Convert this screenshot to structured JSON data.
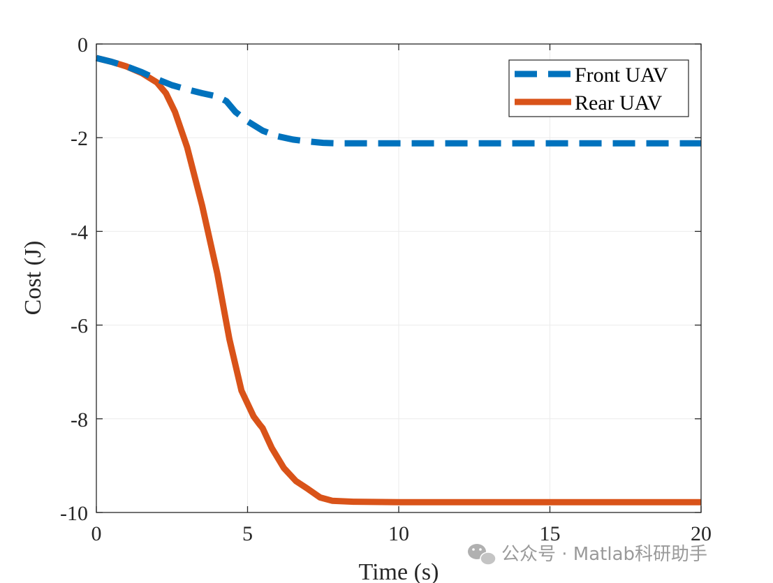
{
  "chart_data": {
    "type": "line",
    "xlabel": "Time (s)",
    "ylabel": "Cost (J)",
    "xlim": [
      0,
      20
    ],
    "ylim": [
      -10,
      0
    ],
    "xticks": [
      0,
      5,
      10,
      15,
      20
    ],
    "yticks": [
      0,
      -2,
      -4,
      -6,
      -8,
      -10
    ],
    "xtick_labels": [
      "0",
      "5",
      "10",
      "15",
      "20"
    ],
    "ytick_labels": [
      "0",
      "-2",
      "-4",
      "-6",
      "-8",
      "-10"
    ],
    "grid": true,
    "legend_position": "top-right",
    "series": [
      {
        "name": "Front UAV",
        "color": "#0072BD",
        "line_style": "dashed",
        "x": [
          0,
          0.5,
          1.0,
          1.5,
          2.0,
          2.5,
          3.0,
          3.5,
          4.0,
          4.3,
          4.6,
          5.0,
          5.5,
          6.0,
          6.5,
          7.0,
          7.5,
          8.0,
          10,
          12,
          15,
          18,
          20
        ],
        "y": [
          -0.3,
          -0.38,
          -0.48,
          -0.6,
          -0.75,
          -0.88,
          -0.97,
          -1.05,
          -1.12,
          -1.22,
          -1.45,
          -1.65,
          -1.85,
          -1.97,
          -2.04,
          -2.08,
          -2.11,
          -2.12,
          -2.12,
          -2.12,
          -2.12,
          -2.12,
          -2.12
        ]
      },
      {
        "name": "Rear UAV",
        "color": "#D95319",
        "line_style": "solid",
        "x": [
          0,
          0.5,
          1.0,
          1.5,
          2.0,
          2.3,
          2.6,
          3.0,
          3.5,
          4.0,
          4.4,
          4.8,
          5.2,
          5.4,
          5.5,
          5.8,
          6.2,
          6.6,
          7.0,
          7.4,
          7.8,
          8.5,
          10,
          12,
          15,
          18,
          20
        ],
        "y": [
          -0.3,
          -0.38,
          -0.48,
          -0.62,
          -0.82,
          -1.05,
          -1.45,
          -2.2,
          -3.45,
          -4.9,
          -6.3,
          -7.4,
          -7.95,
          -8.12,
          -8.2,
          -8.62,
          -9.05,
          -9.33,
          -9.5,
          -9.68,
          -9.75,
          -9.77,
          -9.78,
          -9.78,
          -9.78,
          -9.78,
          -9.78
        ]
      }
    ]
  },
  "watermark": {
    "icon": "wechat-icon",
    "text": "公众号 · Matlab科研助手"
  }
}
